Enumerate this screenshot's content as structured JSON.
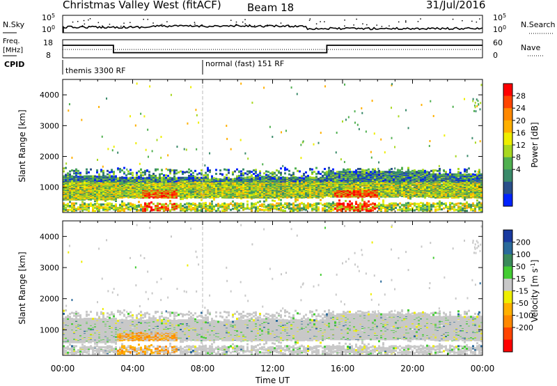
{
  "header": {
    "station": "Christmas Valley West (fitACF)",
    "beam": "Beam 18",
    "date": "31/Jul/2016"
  },
  "left_labels": {
    "nsky": "N.Sky",
    "freq": "Freq.",
    "freq_unit": "[MHz]",
    "cpid": "CPID"
  },
  "right_labels": {
    "nsearch": "N.Search",
    "nave": "Nave"
  },
  "chart_data": [
    {
      "type": "line",
      "panel": "noise",
      "y_tick_labels_left": [
        "10^5",
        "10^0"
      ],
      "y_tick_labels_right": [
        "10^5",
        "10^0"
      ],
      "x_ticks": [
        "00:00",
        "04:00",
        "08:00",
        "12:00",
        "16:00",
        "20:00",
        "00:00"
      ]
    },
    {
      "type": "line",
      "panel": "frequency",
      "y_tick_labels_left": [
        "18",
        "8"
      ],
      "y_tick_labels_right": [
        "60",
        "0"
      ],
      "x": [
        0,
        2.9,
        2.9,
        15.1,
        15.1,
        24
      ],
      "freq": [
        15.5,
        15.5,
        10.2,
        10.2,
        15.5,
        15.5
      ]
    },
    {
      "type": "table",
      "panel": "cpid",
      "segments": [
        {
          "label": "themis 3300 RF",
          "start_hour": 0
        },
        {
          "label": "normal (fast) 151 RF",
          "start_hour": 8
        }
      ]
    },
    {
      "type": "heatmap",
      "panel": "power",
      "ylabel": "Slant Range [km]",
      "yticks": [
        "1000",
        "2000",
        "3000",
        "4000"
      ],
      "ylim": [
        180,
        4500
      ],
      "xlim": [
        0,
        24
      ],
      "colorbar_label": "Power [dB]",
      "colorbar_ticks": [
        "28",
        "24",
        "20",
        "16",
        "12",
        "8",
        "4"
      ],
      "colorbar_colors": [
        "#ff0000",
        "#ff4400",
        "#ff8800",
        "#ffb000",
        "#eeee00",
        "#a8d820",
        "#50b050",
        "#3a8a6a",
        "#2a4f8a",
        "#0022ff"
      ]
    },
    {
      "type": "heatmap",
      "panel": "velocity",
      "ylabel": "Slant Range [km]",
      "yticks": [
        "1000",
        "2000",
        "3000",
        "4000"
      ],
      "ylim": [
        180,
        4500
      ],
      "xlim": [
        0,
        24
      ],
      "colorbar_label": "Velocity [m s^-1]",
      "colorbar_ticks": [
        "200",
        "100",
        "50",
        "15",
        "-15",
        "-50",
        "-100",
        "-200"
      ],
      "colorbar_colors": [
        "#1a3aa0",
        "#2a6a9a",
        "#3a8a5a",
        "#44cc33",
        "#c8c8c8",
        "#eeee00",
        "#ffb000",
        "#ff8800",
        "#ff4400",
        "#ff0000"
      ]
    }
  ],
  "x_ticks": [
    "00:00",
    "04:00",
    "08:00",
    "12:00",
    "16:00",
    "20:00",
    "00:00"
  ],
  "xlabel": "Time UT"
}
